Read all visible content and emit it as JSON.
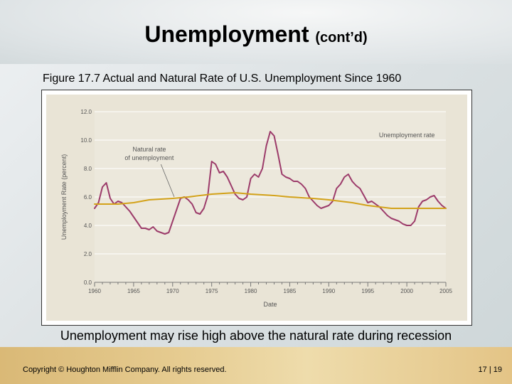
{
  "slide": {
    "title_main": "Unemployment",
    "title_sub": "(cont’d)",
    "figure_caption": "Figure 17.7 Actual and Natural Rate of U.S. Unemployment Since 1960",
    "note": "Unemployment may rise high above the natural rate during recession",
    "copyright": "Copyright © Houghton Mifflin Company. All rights reserved.",
    "page": "17 | 19"
  },
  "colors": {
    "actual_line": "#9c3b6a",
    "natural_line": "#d3a21a",
    "panel_bg": "#e9e4d6",
    "grid": "#ffffff"
  },
  "chart_data": {
    "type": "line",
    "title": "",
    "xlabel": "Date",
    "ylabel": "Unemployment Rate (percent)",
    "xlim": [
      1960,
      2005
    ],
    "ylim": [
      0,
      12
    ],
    "x_ticks": [
      "1960",
      "1965",
      "1970",
      "1975",
      "1980",
      "1985",
      "1990",
      "1995",
      "2000",
      "2005"
    ],
    "y_ticks": [
      "0.0",
      "2.0",
      "4.0",
      "6.0",
      "8.0",
      "10.0",
      "12.0"
    ],
    "grid": true,
    "series": [
      {
        "name": "Unemployment rate",
        "x": [
          1960,
          1960.5,
          1961,
          1961.5,
          1962,
          1962.5,
          1963,
          1963.5,
          1964,
          1964.5,
          1965,
          1966,
          1966.5,
          1967,
          1967.5,
          1968,
          1968.5,
          1969,
          1969.5,
          1970,
          1970.5,
          1971,
          1971.5,
          1972,
          1972.5,
          1973,
          1973.5,
          1974,
          1974.5,
          1975,
          1975.5,
          1976,
          1976.5,
          1977,
          1977.5,
          1978,
          1978.5,
          1979,
          1979.5,
          1980,
          1980.5,
          1981,
          1981.5,
          1982,
          1982.5,
          1983,
          1983.5,
          1984,
          1984.5,
          1985,
          1985.5,
          1986,
          1986.5,
          1987,
          1987.5,
          1988,
          1988.5,
          1989,
          1989.5,
          1990,
          1990.5,
          1991,
          1991.5,
          1992,
          1992.5,
          1993,
          1993.5,
          1994,
          1994.5,
          1995,
          1995.5,
          1996,
          1996.5,
          1997,
          1997.5,
          1998,
          1998.5,
          1999,
          1999.5,
          2000,
          2000.5,
          2001,
          2001.5,
          2002,
          2002.5,
          2003,
          2003.5,
          2004,
          2004.5,
          2005
        ],
        "values": [
          5.2,
          5.6,
          6.7,
          7.0,
          5.9,
          5.5,
          5.7,
          5.6,
          5.3,
          5.0,
          4.6,
          3.8,
          3.8,
          3.7,
          3.9,
          3.6,
          3.5,
          3.4,
          3.5,
          4.3,
          5.1,
          5.9,
          6.0,
          5.8,
          5.5,
          4.9,
          4.8,
          5.2,
          6.1,
          8.5,
          8.3,
          7.7,
          7.8,
          7.4,
          6.8,
          6.2,
          5.9,
          5.8,
          6.0,
          7.3,
          7.6,
          7.4,
          8.0,
          9.6,
          10.6,
          10.3,
          9.0,
          7.6,
          7.4,
          7.3,
          7.1,
          7.1,
          6.9,
          6.6,
          6.0,
          5.7,
          5.4,
          5.2,
          5.3,
          5.4,
          5.7,
          6.6,
          6.9,
          7.4,
          7.6,
          7.1,
          6.8,
          6.6,
          6.1,
          5.6,
          5.7,
          5.5,
          5.3,
          5.0,
          4.7,
          4.5,
          4.4,
          4.3,
          4.1,
          4.0,
          4.0,
          4.3,
          5.3,
          5.7,
          5.8,
          6.0,
          6.1,
          5.7,
          5.4,
          5.2
        ]
      },
      {
        "name": "Natural rate of unemployment",
        "x": [
          1960,
          1963,
          1965,
          1967,
          1970,
          1972,
          1975,
          1978,
          1980,
          1983,
          1985,
          1988,
          1990,
          1993,
          1995,
          1998,
          2000,
          2005
        ],
        "values": [
          5.5,
          5.5,
          5.6,
          5.8,
          5.9,
          6.0,
          6.2,
          6.3,
          6.2,
          6.1,
          6.0,
          5.9,
          5.8,
          5.6,
          5.4,
          5.2,
          5.2,
          5.2
        ]
      }
    ],
    "annotations": [
      {
        "text": "Unemployment rate",
        "x": 2000,
        "y": 10.2
      },
      {
        "text": "Natural rate",
        "x": 1967,
        "y": 9.2
      },
      {
        "text": "of unemployment",
        "x": 1967,
        "y": 8.6
      }
    ]
  }
}
